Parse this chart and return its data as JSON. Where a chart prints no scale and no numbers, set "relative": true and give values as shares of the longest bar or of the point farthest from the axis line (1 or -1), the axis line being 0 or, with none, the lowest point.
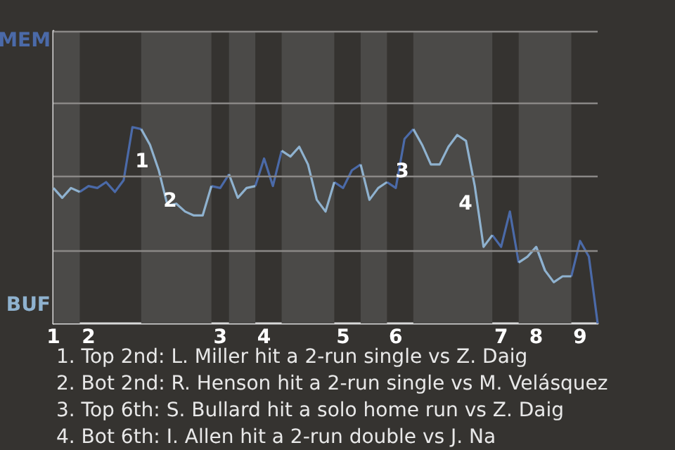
{
  "chart_data": {
    "type": "line",
    "marker": "none",
    "relative": true,
    "ref_lines": [
      {
        "axis": "y",
        "value": 0.37,
        "color": "#8a8886"
      },
      {
        "axis": "y",
        "value": 0.75,
        "color": "#8a8886"
      },
      {
        "axis": "y",
        "value": 1.12,
        "color": "#8a8886"
      },
      {
        "axis": "y",
        "value": 1.49,
        "color": "#8a8886"
      }
    ],
    "categories": [
      "1",
      null,
      null,
      null,
      "2",
      null,
      null,
      null,
      null,
      null,
      null,
      null,
      null,
      null,
      null,
      null,
      null,
      null,
      null,
      "3",
      null,
      null,
      null,
      null,
      "4",
      null,
      null,
      null,
      null,
      null,
      null,
      null,
      null,
      "5",
      null,
      null,
      null,
      null,
      null,
      "6",
      null,
      null,
      null,
      null,
      null,
      null,
      null,
      null,
      null,
      null,
      null,
      "7",
      null,
      null,
      null,
      "8",
      null,
      null,
      null,
      null,
      "9",
      null,
      null
    ],
    "series": [
      {
        "color": "#4b6aa8",
        "values": [
          null,
          null,
          null,
          0.67,
          0.7,
          0.69,
          0.72,
          0.67,
          0.73,
          1,
          0.99,
          null,
          null,
          null,
          null,
          null,
          null,
          null,
          0.7,
          0.69,
          0.76,
          null,
          null,
          0.7,
          0.84,
          0.7,
          0.88,
          null,
          null,
          null,
          null,
          null,
          0.72,
          0.69,
          0.78,
          0.81,
          null,
          null,
          0.72,
          0.69,
          0.94,
          0.99,
          null,
          null,
          null,
          null,
          null,
          null,
          null,
          null,
          0.45,
          0.39,
          0.57,
          0.31,
          null,
          0.39,
          0.27,
          null,
          null,
          0.24,
          0.42,
          0.34,
          0
        ],
        "name": null
      },
      {
        "color": "#8fb2cf",
        "values": [
          0.69,
          0.64,
          0.69,
          0.67,
          null,
          null,
          null,
          null,
          null,
          null,
          0.99,
          0.91,
          0.78,
          0.6,
          0.61,
          0.57,
          0.55,
          0.55,
          0.7,
          null,
          0.76,
          0.64,
          0.69,
          0.7,
          null,
          null,
          0.88,
          0.85,
          0.9,
          0.81,
          0.63,
          0.57,
          0.72,
          null,
          null,
          0.81,
          0.63,
          0.69,
          0.72,
          null,
          null,
          0.99,
          0.91,
          0.81,
          0.81,
          0.9,
          0.96,
          0.93,
          0.7,
          0.39,
          0.45,
          null,
          null,
          0.31,
          0.34,
          0.39,
          0.27,
          0.21,
          0.24,
          0.24,
          null,
          null,
          null
        ]
      }
    ],
    "annotations": [
      "MEM",
      "BUF",
      "1",
      "2",
      "3",
      "4",
      "1. Top 2nd: L. Miller hit a 2-run single vs Z. Daig",
      "2. Bot 2nd: R. Henson hit a 2-run single vs M. Velásquez",
      "3. Top 6th: S. Bullard hit a solo home run vs Z. Daig",
      "4. Bot 6th: I. Allen hit a 2-run double vs J. Na"
    ]
  }
}
